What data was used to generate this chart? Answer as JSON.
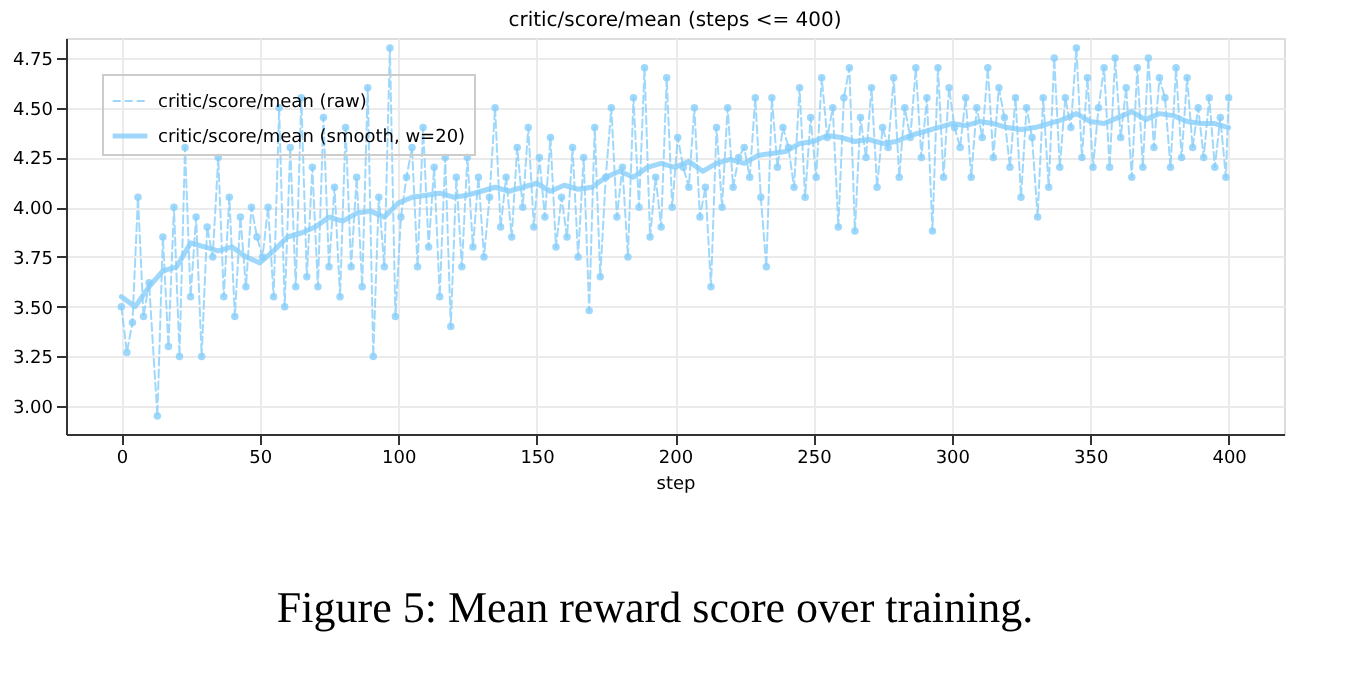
{
  "chart_data": {
    "type": "line",
    "title": "critic/score/mean (steps <= 400)",
    "xlabel": "step",
    "annotations": [
      "Figure 5: Mean reward score over training."
    ],
    "xlim": [
      -20,
      420
    ],
    "xticks": [
      0,
      50,
      100,
      150,
      200,
      250,
      300,
      350,
      400
    ],
    "ylim": [
      2.86,
      4.85
    ],
    "yticks": [
      {
        "value": 3.0,
        "label": "3.00"
      },
      3.25,
      {
        "value": 3.5,
        "label": "3.50"
      },
      3.75,
      {
        "value": 4.0,
        "label": "4.00"
      },
      4.25,
      {
        "value": 4.5,
        "label": "4.50"
      },
      4.75
    ],
    "grid": true,
    "legend": "top left",
    "series": [
      {
        "name": "critic/score/mean (raw)",
        "color": "#87cefa",
        "line_style": "dashed",
        "marker": "circle",
        "x": [
          0,
          2,
          4,
          6,
          8,
          10,
          13,
          15,
          17,
          19,
          21,
          23,
          25,
          27,
          29,
          31,
          33,
          35,
          37,
          39,
          41,
          43,
          45,
          47,
          49,
          51,
          53,
          55,
          57,
          59,
          61,
          63,
          65,
          67,
          69,
          71,
          73,
          75,
          77,
          79,
          81,
          83,
          85,
          87,
          89,
          91,
          93,
          95,
          97,
          99,
          101,
          103,
          105,
          107,
          109,
          111,
          113,
          115,
          117,
          119,
          121,
          123,
          125,
          127,
          129,
          131,
          133,
          135,
          137,
          139,
          141,
          143,
          145,
          147,
          149,
          151,
          153,
          155,
          157,
          159,
          161,
          163,
          165,
          167,
          169,
          171,
          173,
          175,
          177,
          179,
          181,
          183,
          185,
          187,
          189,
          191,
          193,
          195,
          197,
          199,
          201,
          203,
          205,
          207,
          209,
          211,
          213,
          215,
          217,
          219,
          221,
          223,
          225,
          227,
          229,
          231,
          233,
          235,
          237,
          239,
          241,
          243,
          245,
          247,
          249,
          251,
          253,
          255,
          257,
          259,
          261,
          263,
          265,
          267,
          269,
          271,
          273,
          275,
          277,
          279,
          281,
          283,
          285,
          287,
          289,
          291,
          293,
          295,
          297,
          299,
          301,
          303,
          305,
          307,
          309,
          311,
          313,
          315,
          317,
          319,
          321,
          323,
          325,
          327,
          329,
          331,
          333,
          335,
          337,
          339,
          341,
          343,
          345,
          347,
          349,
          351,
          353,
          355,
          357,
          359,
          361,
          363,
          365,
          367,
          369,
          371,
          373,
          375,
          377,
          379,
          381,
          383,
          385,
          387,
          389,
          391,
          393,
          395,
          397,
          399,
          400
        ],
        "values": [
          3.5,
          3.27,
          3.42,
          4.05,
          3.45,
          3.62,
          2.95,
          3.85,
          3.3,
          4.0,
          3.25,
          4.3,
          3.55,
          3.95,
          3.25,
          3.9,
          3.75,
          4.25,
          3.55,
          4.05,
          3.45,
          3.95,
          3.6,
          4.0,
          3.85,
          3.75,
          4.0,
          3.55,
          4.5,
          3.5,
          4.3,
          3.6,
          4.55,
          3.65,
          4.2,
          3.6,
          4.45,
          3.7,
          4.1,
          3.55,
          4.4,
          3.7,
          4.15,
          3.6,
          4.6,
          3.25,
          4.05,
          3.7,
          4.8,
          3.45,
          3.95,
          4.15,
          4.3,
          3.7,
          4.4,
          3.8,
          4.2,
          3.55,
          4.25,
          3.4,
          4.15,
          3.7,
          4.25,
          3.8,
          4.15,
          3.75,
          4.05,
          4.5,
          3.9,
          4.15,
          3.85,
          4.3,
          4.0,
          4.4,
          3.9,
          4.25,
          3.95,
          4.35,
          3.8,
          4.05,
          3.85,
          4.3,
          3.75,
          4.25,
          3.48,
          4.4,
          3.65,
          4.15,
          4.5,
          3.95,
          4.2,
          3.75,
          4.55,
          4.0,
          4.7,
          3.85,
          4.15,
          3.9,
          4.65,
          4.0,
          4.35,
          4.2,
          4.1,
          4.5,
          3.95,
          4.1,
          3.6,
          4.4,
          4.0,
          4.5,
          4.1,
          4.25,
          4.3,
          4.15,
          4.55,
          4.05,
          3.7,
          4.55,
          4.2,
          4.4,
          4.3,
          4.1,
          4.6,
          4.05,
          4.45,
          4.15,
          4.65,
          4.35,
          4.5,
          3.9,
          4.55,
          4.7,
          3.88,
          4.45,
          4.25,
          4.6,
          4.1,
          4.4,
          4.3,
          4.65,
          4.15,
          4.5,
          4.35,
          4.7,
          4.25,
          4.55,
          3.88,
          4.7,
          4.15,
          4.6,
          4.4,
          4.3,
          4.55,
          4.15,
          4.5,
          4.35,
          4.7,
          4.25,
          4.6,
          4.45,
          4.2,
          4.55,
          4.05,
          4.5,
          4.35,
          3.95,
          4.55,
          4.1,
          4.75,
          4.2,
          4.55,
          4.4,
          4.8,
          4.25,
          4.65,
          4.2,
          4.5,
          4.7,
          4.2,
          4.75,
          4.35,
          4.6,
          4.15,
          4.7,
          4.2,
          4.75,
          4.3,
          4.65,
          4.55,
          4.2,
          4.7,
          4.25,
          4.65,
          4.3,
          4.5,
          4.25,
          4.55,
          4.2,
          4.45,
          4.15,
          4.55
        ]
      },
      {
        "name": "critic/score/mean (smooth, w=20)",
        "color": "#87cefa",
        "line_style": "solid",
        "marker": "none",
        "x": [
          0,
          5,
          10,
          15,
          20,
          25,
          30,
          35,
          40,
          45,
          50,
          55,
          60,
          65,
          70,
          75,
          80,
          85,
          90,
          95,
          100,
          105,
          110,
          115,
          120,
          125,
          130,
          135,
          140,
          145,
          150,
          155,
          160,
          165,
          170,
          175,
          180,
          185,
          190,
          195,
          200,
          205,
          210,
          215,
          220,
          225,
          230,
          235,
          240,
          245,
          250,
          255,
          260,
          265,
          270,
          275,
          280,
          285,
          290,
          295,
          300,
          305,
          310,
          315,
          320,
          325,
          330,
          335,
          340,
          345,
          350,
          355,
          360,
          365,
          370,
          375,
          380,
          385,
          390,
          395,
          400
        ],
        "values": [
          3.55,
          3.5,
          3.6,
          3.68,
          3.7,
          3.82,
          3.8,
          3.78,
          3.8,
          3.75,
          3.72,
          3.78,
          3.85,
          3.87,
          3.9,
          3.95,
          3.93,
          3.97,
          3.98,
          3.95,
          4.02,
          4.05,
          4.06,
          4.07,
          4.05,
          4.06,
          4.08,
          4.1,
          4.08,
          4.1,
          4.12,
          4.08,
          4.11,
          4.09,
          4.1,
          4.15,
          4.18,
          4.15,
          4.2,
          4.22,
          4.2,
          4.23,
          4.18,
          4.22,
          4.24,
          4.22,
          4.26,
          4.27,
          4.28,
          4.32,
          4.33,
          4.36,
          4.35,
          4.33,
          4.34,
          4.32,
          4.33,
          4.36,
          4.38,
          4.4,
          4.42,
          4.41,
          4.43,
          4.42,
          4.4,
          4.39,
          4.4,
          4.42,
          4.44,
          4.47,
          4.43,
          4.42,
          4.45,
          4.48,
          4.44,
          4.47,
          4.46,
          4.43,
          4.42,
          4.42,
          4.4
        ]
      }
    ]
  }
}
